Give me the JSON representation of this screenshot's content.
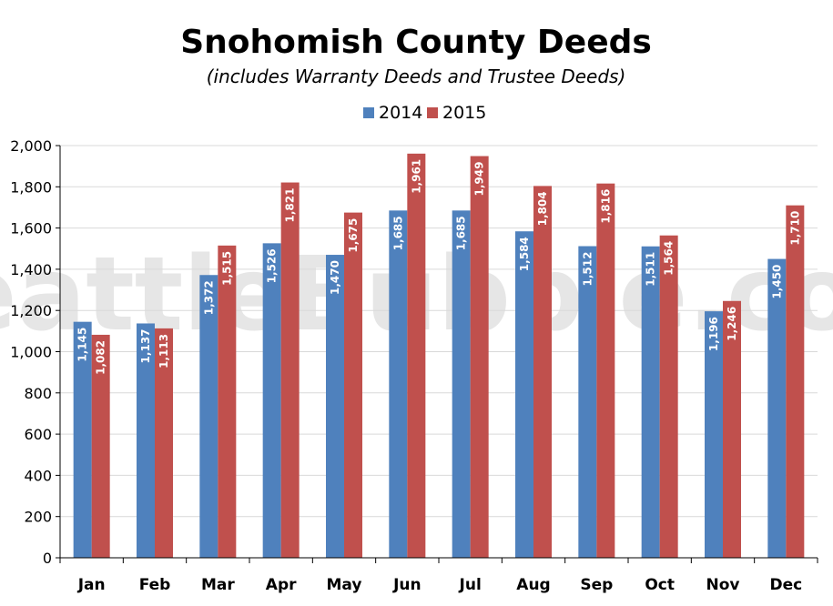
{
  "chart_data": {
    "type": "bar",
    "title": "Snohomish County Deeds",
    "subtitle": "(includes Warranty Deeds and Trustee Deeds)",
    "watermark": "SeattleBubble.com",
    "categories": [
      "Jan",
      "Feb",
      "Mar",
      "Apr",
      "May",
      "Jun",
      "Jul",
      "Aug",
      "Sep",
      "Oct",
      "Nov",
      "Dec"
    ],
    "series": [
      {
        "name": "2014",
        "color": "#4f81bd",
        "values": [
          1145,
          1137,
          1372,
          1526,
          1470,
          1685,
          1685,
          1584,
          1512,
          1511,
          1196,
          1450
        ],
        "labels": [
          "1,145",
          "1,137",
          "1,372",
          "1,526",
          "1,470",
          "1,685",
          "1,685",
          "1,584",
          "1,512",
          "1,511",
          "1,196",
          "1,450"
        ]
      },
      {
        "name": "2015",
        "color": "#c0504d",
        "values": [
          1082,
          1113,
          1515,
          1821,
          1675,
          1961,
          1949,
          1804,
          1816,
          1564,
          1246,
          1710
        ],
        "labels": [
          "1,082",
          "1,113",
          "1,515",
          "1,821",
          "1,675",
          "1,961",
          "1,949",
          "1,804",
          "1,816",
          "1,564",
          "1,246",
          "1,710"
        ]
      }
    ],
    "ylim": [
      0,
      2000
    ],
    "y_ticks": [
      0,
      200,
      400,
      600,
      800,
      1000,
      1200,
      1400,
      1600,
      1800,
      2000
    ],
    "y_tick_labels": [
      "0",
      "200",
      "400",
      "600",
      "800",
      "1,000",
      "1,200",
      "1,400",
      "1,600",
      "1,800",
      "2,000"
    ],
    "xlabel": "",
    "ylabel": "",
    "grid": true,
    "legend_position": "top-center"
  }
}
